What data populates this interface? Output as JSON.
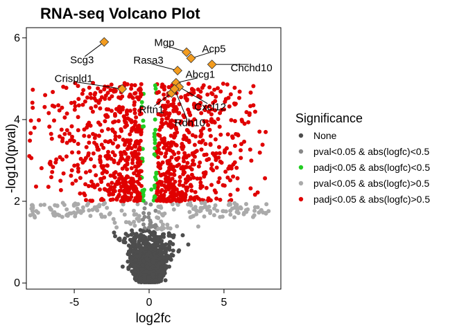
{
  "chart_data": {
    "type": "scatter",
    "title": "RNA-seq Volcano Plot",
    "xlabel": "log2fc",
    "ylabel": "-log10(pval)",
    "xlim": [
      -8.2,
      8.8
    ],
    "ylim": [
      -0.15,
      6.25
    ],
    "xticks": [
      -5,
      0,
      5
    ],
    "yticks": [
      0,
      2,
      4,
      6
    ],
    "grid": false,
    "legend": {
      "title": "Significance",
      "position": "right",
      "entries": [
        {
          "label": "None",
          "color": "#4d4d4d"
        },
        {
          "label": "pval<0.05 & abs(logfc)<0.5",
          "color": "#888888"
        },
        {
          "label": "padj<0.05 & abs(logfc)<0.5",
          "color": "#22cc22"
        },
        {
          "label": "pval<0.05 & abs(logfc)>0.5",
          "color": "#aaaaaa"
        },
        {
          "label": "padj<0.05 & abs(logfc)>0.5",
          "color": "#e00000"
        }
      ]
    },
    "highlight_color": "#f39c1f",
    "labeled_genes": [
      {
        "gene": "Scg3",
        "x": -3.0,
        "y": 5.9
      },
      {
        "gene": "Mgp",
        "x": 2.5,
        "y": 5.65
      },
      {
        "gene": "Acp5",
        "x": 2.8,
        "y": 5.5
      },
      {
        "gene": "Chchd10",
        "x": 4.2,
        "y": 5.35
      },
      {
        "gene": "Rasa3",
        "x": 1.9,
        "y": 5.2
      },
      {
        "gene": "Crispld1",
        "x": -1.8,
        "y": 4.75
      },
      {
        "gene": "Abcg1",
        "x": 1.8,
        "y": 4.9
      },
      {
        "gene": "Rftn1",
        "x": 1.5,
        "y": 4.65
      },
      {
        "gene": "Cxcl12",
        "x": 2.0,
        "y": 4.8
      },
      {
        "gene": "Rdh10",
        "x": 1.7,
        "y": 4.75
      }
    ]
  }
}
